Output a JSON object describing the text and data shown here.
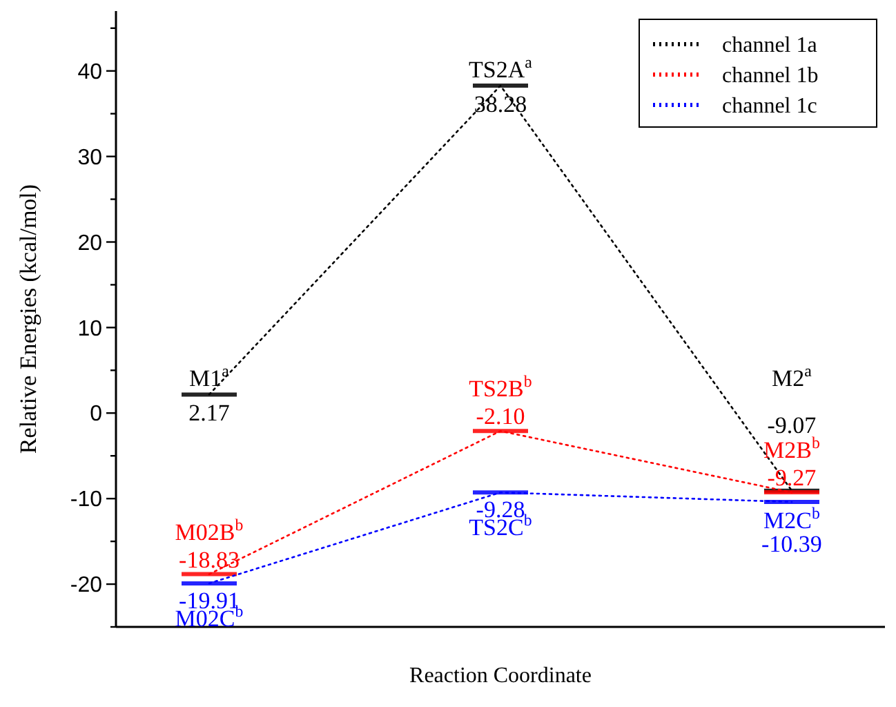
{
  "chart_data": {
    "type": "line",
    "ylabel": "Relative Energies (kcal/mol)",
    "xlabel": "Reaction Coordinate",
    "categories": [
      null,
      null,
      null
    ],
    "ylim": [
      -25,
      47
    ],
    "yticks": [
      {
        "value": -25,
        "label": null
      },
      -20,
      {
        "value": -15,
        "label": null
      },
      -10,
      {
        "value": -5,
        "label": null
      },
      0,
      {
        "value": 5,
        "label": null
      },
      10,
      {
        "value": 15,
        "label": null
      },
      20,
      {
        "value": 25,
        "label": null
      },
      30,
      {
        "value": 35,
        "label": null
      },
      40,
      {
        "value": 45,
        "label": null
      }
    ],
    "line_style": "dotted",
    "legend": "top right",
    "grid": false,
    "series": [
      {
        "name": "channel 1a",
        "color": "#000000",
        "values": [
          2.17,
          38.28,
          -9.07
        ],
        "value_labels": [
          "2.17",
          "38.28",
          "-9.07"
        ]
      },
      {
        "name": "channel 1b",
        "color": "#ff0000",
        "values": [
          -18.83,
          -2.1,
          -9.27
        ],
        "value_labels": [
          "-18.83",
          "-2.10",
          "-9.27"
        ]
      },
      {
        "name": "channel 1c",
        "color": "#0000ff",
        "values": [
          -19.91,
          -9.28,
          -10.39
        ],
        "value_labels": [
          "-19.91",
          "-9.28",
          "-10.39"
        ]
      }
    ],
    "annotations": [
      "M1$^{a}$",
      "TS2A$^{a}$",
      "M2$^{a}$",
      "M02B$^{b}$",
      "TS2B$^{b}$",
      "M2B$^{b}$",
      "M02C$^{b}$",
      "TS2C$^{b}$",
      "M2C$^{b}$"
    ]
  }
}
